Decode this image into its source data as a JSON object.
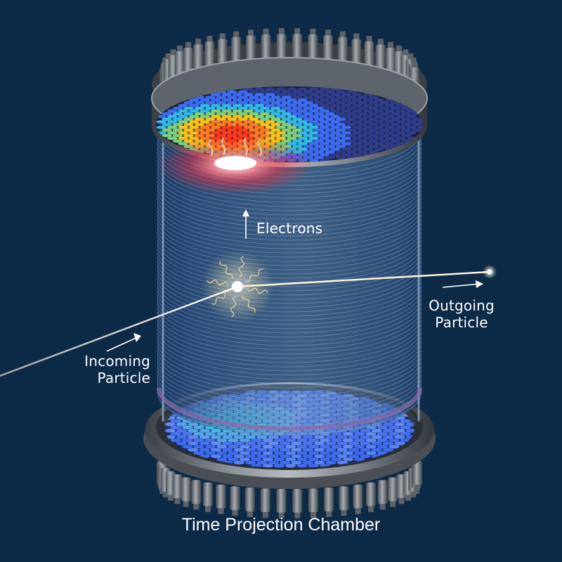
{
  "title": "Time Projection Chamber",
  "labels": {
    "electrons": "Electrons",
    "outgoing_line1": "Outgoing",
    "outgoing_line2": "Particle",
    "incoming_line1": "Incoming",
    "incoming_line2": "Particle"
  },
  "colors": {
    "background": "#0d2a47",
    "top_array_hot": "#ff3a1a",
    "top_array_warm": "#f6c21a",
    "photosensor_cool": "#3d6cf0",
    "photosensor_cyan": "#32b8e6",
    "track": "#fff6dc"
  }
}
